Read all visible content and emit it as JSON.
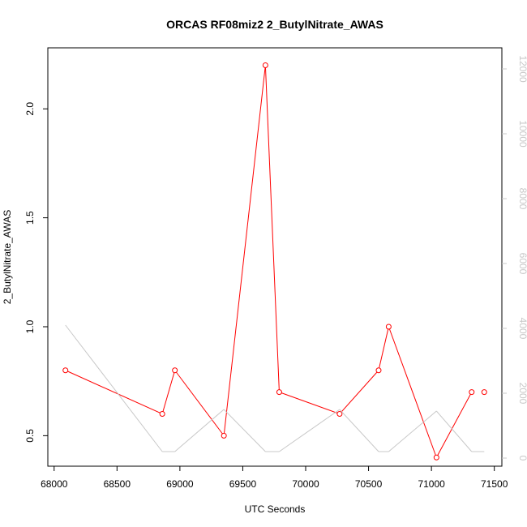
{
  "chart_data": {
    "type": "line",
    "title": "ORCAS RF08miz2 2_ButylNitrate_AWAS",
    "xlabel": "UTC Seconds",
    "ylabel": "2_ButylNitrate_AWAS",
    "xlim": [
      67950,
      71560
    ],
    "ylim": [
      0.36,
      2.28
    ],
    "y2lim": [
      -250,
      12650
    ],
    "x_ticks": [
      68000,
      68500,
      69000,
      69500,
      70000,
      70500,
      71000,
      71500
    ],
    "y_ticks": [
      0.5,
      1.0,
      1.5,
      2.0
    ],
    "y_tick_labels": [
      "0.5",
      "1.0",
      "1.5",
      "2.0"
    ],
    "y2_ticks": [
      0,
      2000,
      4000,
      6000,
      8000,
      10000,
      12000
    ],
    "grid": false,
    "series": [
      {
        "axis": "left",
        "color": "#ff0000",
        "marker": "open-circle",
        "x": [
          68090,
          68860,
          68960,
          69350,
          69680,
          69790,
          70270,
          70580,
          70660,
          71040,
          71320,
          71420
        ],
        "y": [
          0.8,
          0.6,
          0.8,
          0.5,
          2.2,
          0.7,
          0.6,
          0.8,
          1.0,
          0.4,
          0.7,
          0.7
        ],
        "connect": [
          true,
          true,
          true,
          true,
          true,
          true,
          true,
          true,
          true,
          true,
          false
        ]
      },
      {
        "axis": "right",
        "color": "#c8c8c8",
        "marker": "none",
        "x": [
          68090,
          68860,
          68960,
          69350,
          69680,
          69790,
          70270,
          70580,
          70660,
          71040,
          71320,
          71420
        ],
        "y": [
          4100,
          200,
          200,
          1500,
          200,
          200,
          1500,
          200,
          200,
          1450,
          200,
          200
        ]
      }
    ]
  }
}
